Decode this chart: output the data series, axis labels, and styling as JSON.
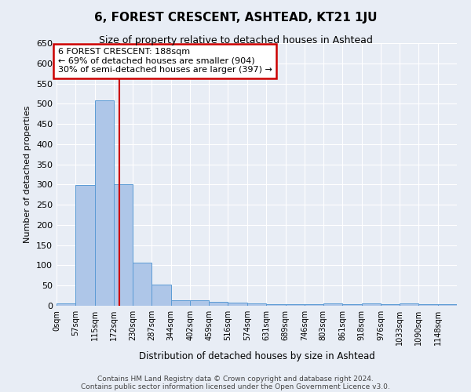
{
  "title": "6, FOREST CRESCENT, ASHTEAD, KT21 1JU",
  "subtitle": "Size of property relative to detached houses in Ashtead",
  "xlabel": "Distribution of detached houses by size in Ashtead",
  "ylabel": "Number of detached properties",
  "bar_labels": [
    "0sqm",
    "57sqm",
    "115sqm",
    "172sqm",
    "230sqm",
    "287sqm",
    "344sqm",
    "402sqm",
    "459sqm",
    "516sqm",
    "574sqm",
    "631sqm",
    "689sqm",
    "746sqm",
    "803sqm",
    "861sqm",
    "918sqm",
    "976sqm",
    "1033sqm",
    "1090sqm",
    "1148sqm"
  ],
  "bar_values": [
    5,
    298,
    508,
    301,
    107,
    52,
    13,
    14,
    9,
    7,
    5,
    4,
    4,
    4,
    5,
    4,
    5,
    4,
    5,
    4,
    4
  ],
  "bar_color": "#aec6e8",
  "bar_edge_color": "#5b9bd5",
  "bg_color": "#e8edf5",
  "grid_color": "#ffffff",
  "vline_x": 188,
  "annotation_title": "6 FOREST CRESCENT: 188sqm",
  "annotation_line1": "← 69% of detached houses are smaller (904)",
  "annotation_line2": "30% of semi-detached houses are larger (397) →",
  "annotation_box_color": "#ffffff",
  "annotation_box_edge": "#cc0000",
  "vline_color": "#cc0000",
  "ylim": [
    0,
    650
  ],
  "yticks": [
    0,
    50,
    100,
    150,
    200,
    250,
    300,
    350,
    400,
    450,
    500,
    550,
    600,
    650
  ],
  "bin_edges": [
    0,
    57,
    115,
    172,
    230,
    287,
    344,
    402,
    459,
    516,
    574,
    631,
    689,
    746,
    803,
    861,
    918,
    976,
    1033,
    1090,
    1148,
    1205
  ],
  "footnote1": "Contains HM Land Registry data © Crown copyright and database right 2024.",
  "footnote2": "Contains public sector information licensed under the Open Government Licence v3.0."
}
